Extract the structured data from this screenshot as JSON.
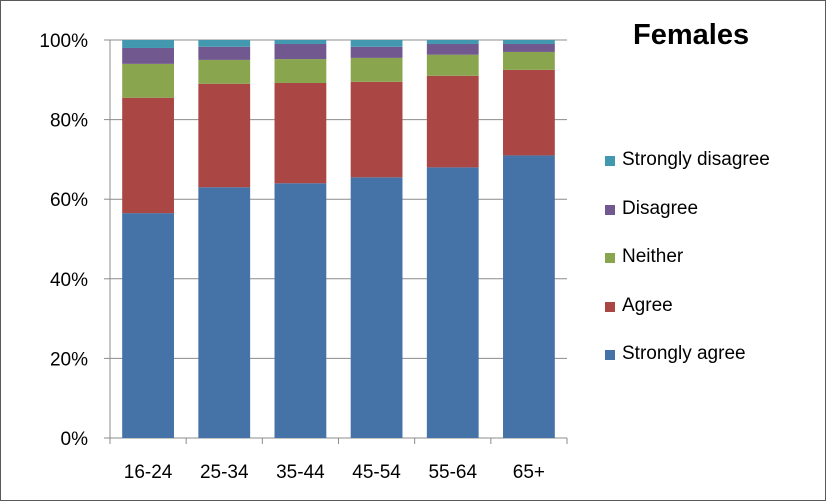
{
  "chart_data": {
    "type": "bar",
    "stacked": true,
    "percent_stacked": true,
    "title": "Females",
    "xlabel": "",
    "ylabel": "",
    "categories": [
      "16-24",
      "25-34",
      "35-44",
      "45-54",
      "55-64",
      "65+"
    ],
    "y_ticks": [
      "0%",
      "20%",
      "40%",
      "60%",
      "80%",
      "100%"
    ],
    "ylim": [
      0,
      100
    ],
    "grid": true,
    "legend_position": "right",
    "series": [
      {
        "name": "Strongly agree",
        "color": "#4572A7",
        "values": [
          56.5,
          63,
          64,
          65.5,
          68,
          71
        ]
      },
      {
        "name": "Agree",
        "color": "#AA4643",
        "values": [
          29,
          26,
          25.2,
          24,
          23,
          21.5
        ]
      },
      {
        "name": "Neither",
        "color": "#89A54E",
        "values": [
          8.5,
          6,
          6,
          6,
          5.3,
          4.5
        ]
      },
      {
        "name": "Disagree",
        "color": "#71588F",
        "values": [
          4,
          3.3,
          3.8,
          2.8,
          2.7,
          2
        ]
      },
      {
        "name": "Strongly disagree",
        "color": "#4198AF",
        "values": [
          2,
          1.7,
          1,
          1.7,
          1,
          1
        ]
      }
    ]
  }
}
